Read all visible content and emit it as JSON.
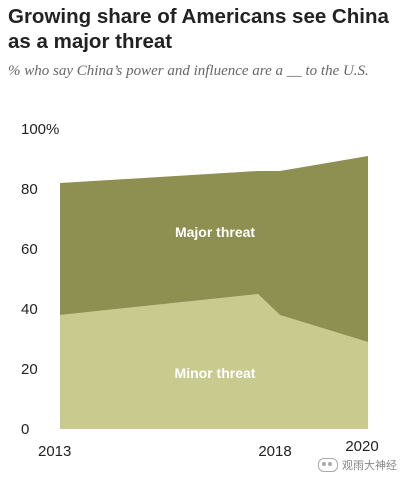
{
  "chart_data": {
    "type": "area",
    "title": "Growing share of Americans see China as a major threat",
    "subtitle": "% who say China’s power and influence are a __ to the U.S.",
    "x": [
      2013,
      2017.5,
      2018,
      2020
    ],
    "x_tick_labels": [
      "2013",
      "2018",
      "2020"
    ],
    "y_tick_labels": [
      "0",
      "20",
      "40",
      "60",
      "80",
      "100%"
    ],
    "ylim": [
      0,
      100
    ],
    "stacked": true,
    "series": [
      {
        "name": "Minor threat",
        "values": [
          38,
          45,
          38,
          29
        ],
        "color": "#c8ca8e"
      },
      {
        "name": "Major threat",
        "values": [
          44,
          41,
          48,
          62
        ],
        "color": "#8d9050"
      }
    ],
    "totals": [
      82,
      86,
      86,
      91
    ],
    "grid": false,
    "legend": "inline labels"
  },
  "watermark": {
    "text": "观雨大神经",
    "icon": "wechat-icon"
  }
}
